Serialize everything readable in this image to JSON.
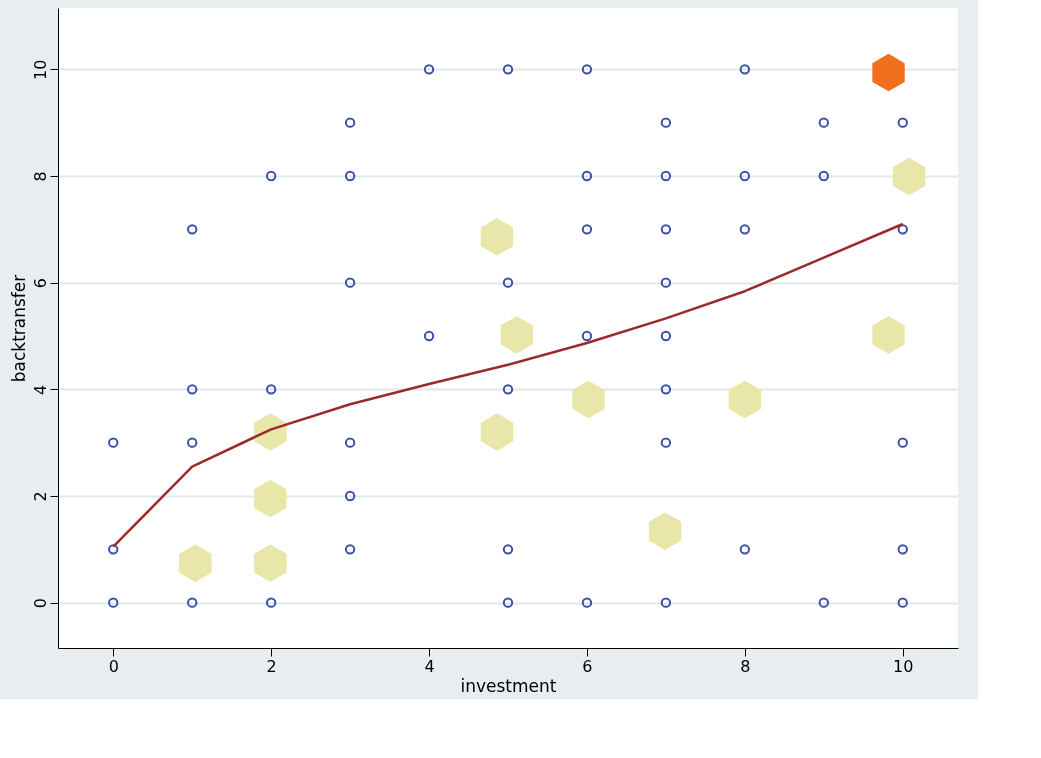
{
  "chart_data": {
    "type": "scatter",
    "xlabel": "investment",
    "ylabel": "backtransfer",
    "xlim": [
      -0.7,
      10.7
    ],
    "ylim": [
      -0.85,
      11.15
    ],
    "xticks": [
      0,
      2,
      4,
      6,
      8,
      10
    ],
    "yticks": [
      0,
      2,
      4,
      6,
      8,
      10
    ],
    "grid": "y",
    "series": [
      {
        "type": "scatter",
        "marker": "circle",
        "color": "#3a4fa8",
        "x": [
          0,
          0,
          0,
          1,
          1,
          1,
          1,
          2,
          2,
          2,
          3,
          3,
          3,
          3,
          3,
          3,
          4,
          4,
          5,
          5,
          5,
          5,
          5,
          6,
          6,
          6,
          6,
          6,
          7,
          7,
          7,
          7,
          7,
          7,
          7,
          7,
          8,
          8,
          8,
          8,
          9,
          9,
          9,
          10,
          10,
          10,
          10,
          10
        ],
        "values": [
          3,
          1,
          0,
          7,
          4,
          3,
          0,
          8,
          4,
          0,
          9,
          8,
          6,
          3,
          2,
          1,
          10,
          5,
          10,
          6,
          4,
          1,
          0,
          10,
          8,
          7,
          5,
          0,
          9,
          8,
          7,
          6,
          5,
          4,
          3,
          0,
          10,
          8,
          7,
          1,
          9,
          8,
          0,
          9,
          7,
          3,
          1,
          0
        ]
      },
      {
        "type": "scatter",
        "color": "#e8e6a8",
        "x": [
          1.04,
          1.99,
          1.99,
          1.99,
          4.86,
          5.11,
          4.86,
          6.02,
          6.99,
          8.0,
          9.82,
          10.08
        ],
        "values": [
          0.74,
          0.74,
          1.95,
          3.2,
          6.86,
          5.02,
          3.2,
          3.81,
          1.34,
          3.81,
          5.02,
          7.99
        ]
      },
      {
        "type": "scatter",
        "color": "#f07020",
        "x": [
          9.82
        ],
        "values": [
          9.94
        ]
      },
      {
        "type": "line",
        "marker": "none",
        "line_style": "solid",
        "color": "#9b2a2a",
        "x": [
          0,
          0.5,
          1,
          2,
          3,
          4,
          5,
          6,
          7,
          8,
          9,
          10
        ],
        "values": [
          1.05,
          1.8,
          2.55,
          3.25,
          3.72,
          4.1,
          4.46,
          4.87,
          5.33,
          5.84,
          6.47,
          7.1
        ]
      }
    ]
  }
}
